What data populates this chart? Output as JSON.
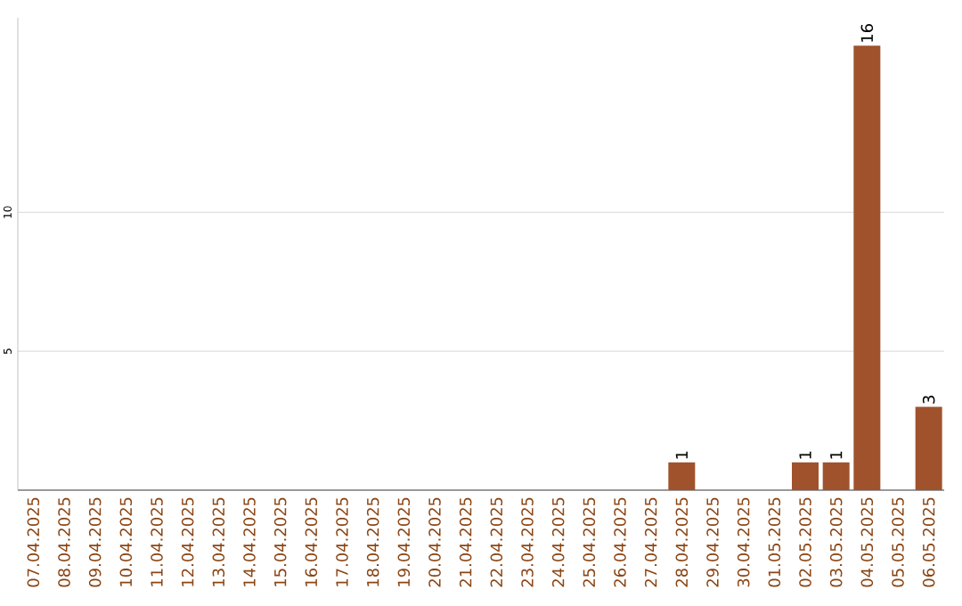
{
  "chart_data": {
    "type": "bar",
    "categories": [
      "07.04.2025",
      "08.04.2025",
      "09.04.2025",
      "10.04.2025",
      "11.04.2025",
      "12.04.2025",
      "13.04.2025",
      "14.04.2025",
      "15.04.2025",
      "16.04.2025",
      "17.04.2025",
      "18.04.2025",
      "19.04.2025",
      "20.04.2025",
      "21.04.2025",
      "22.04.2025",
      "23.04.2025",
      "24.04.2025",
      "25.04.2025",
      "26.04.2025",
      "27.04.2025",
      "28.04.2025",
      "29.04.2025",
      "30.04.2025",
      "01.05.2025",
      "02.05.2025",
      "03.05.2025",
      "04.05.2025",
      "05.05.2025",
      "06.05.2025"
    ],
    "values": [
      0,
      0,
      0,
      0,
      0,
      0,
      0,
      0,
      0,
      0,
      0,
      0,
      0,
      0,
      0,
      0,
      0,
      0,
      0,
      0,
      0,
      1,
      0,
      0,
      0,
      1,
      1,
      16,
      0,
      3
    ],
    "value_labels": [
      null,
      null,
      null,
      null,
      null,
      null,
      null,
      null,
      null,
      null,
      null,
      null,
      null,
      null,
      null,
      null,
      null,
      null,
      null,
      null,
      null,
      "1",
      null,
      null,
      null,
      "1",
      "1",
      "16",
      null,
      "3"
    ],
    "color": "#a0522d",
    "ylim": [
      0,
      17
    ],
    "yticks": [
      5,
      10
    ],
    "grid": "y"
  }
}
